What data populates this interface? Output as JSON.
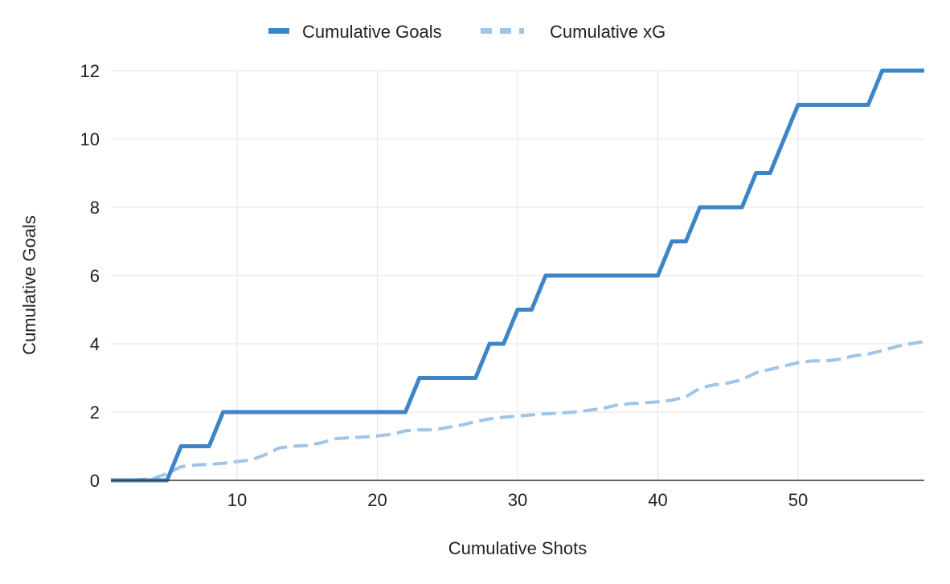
{
  "chart_data": {
    "type": "line",
    "title": "",
    "xlabel": "Cumulative Shots",
    "ylabel": "Cumulative Goals",
    "xlim": [
      1,
      59
    ],
    "ylim": [
      0,
      12
    ],
    "xticks": [
      10,
      20,
      30,
      40,
      50
    ],
    "yticks": [
      0,
      2,
      4,
      6,
      8,
      10,
      12
    ],
    "grid": true,
    "legend_position": "top-center",
    "series": [
      {
        "name": "Cumulative Goals",
        "color": "#3d85c6",
        "style": "solid",
        "x": [
          1,
          2,
          3,
          4,
          5,
          6,
          7,
          8,
          9,
          10,
          11,
          12,
          13,
          14,
          15,
          16,
          17,
          18,
          19,
          20,
          21,
          22,
          23,
          24,
          25,
          26,
          27,
          28,
          29,
          30,
          31,
          32,
          33,
          34,
          35,
          36,
          37,
          38,
          39,
          40,
          41,
          42,
          43,
          44,
          45,
          46,
          47,
          48,
          49,
          50,
          51,
          52,
          53,
          54,
          55,
          56,
          57,
          58,
          59
        ],
        "values": [
          0,
          0,
          0,
          0,
          0,
          1,
          1,
          1,
          2,
          2,
          2,
          2,
          2,
          2,
          2,
          2,
          2,
          2,
          2,
          2,
          2,
          2,
          3,
          3,
          3,
          3,
          3,
          4,
          4,
          5,
          5,
          6,
          6,
          6,
          6,
          6,
          6,
          6,
          6,
          6,
          7,
          7,
          8,
          8,
          8,
          8,
          9,
          9,
          10,
          11,
          11,
          11,
          11,
          11,
          11,
          12,
          12,
          12,
          12
        ]
      },
      {
        "name": "Cumulative xG",
        "color": "#9fc5e8",
        "style": "dashed",
        "x": [
          1,
          2,
          3,
          4,
          5,
          6,
          7,
          8,
          9,
          10,
          11,
          12,
          13,
          14,
          15,
          16,
          17,
          18,
          19,
          20,
          21,
          22,
          23,
          24,
          25,
          26,
          27,
          28,
          29,
          30,
          31,
          32,
          33,
          34,
          35,
          36,
          37,
          38,
          39,
          40,
          41,
          42,
          43,
          44,
          45,
          46,
          47,
          48,
          49,
          50,
          51,
          52,
          53,
          54,
          55,
          56,
          57,
          58,
          59
        ],
        "values": [
          0,
          0,
          0.02,
          0.05,
          0.2,
          0.4,
          0.45,
          0.47,
          0.5,
          0.55,
          0.6,
          0.75,
          0.95,
          1.0,
          1.02,
          1.1,
          1.22,
          1.25,
          1.27,
          1.3,
          1.35,
          1.45,
          1.48,
          1.48,
          1.55,
          1.62,
          1.72,
          1.8,
          1.85,
          1.88,
          1.92,
          1.95,
          1.97,
          2.0,
          2.05,
          2.1,
          2.2,
          2.25,
          2.27,
          2.3,
          2.35,
          2.45,
          2.7,
          2.8,
          2.85,
          2.95,
          3.15,
          3.25,
          3.35,
          3.45,
          3.5,
          3.5,
          3.55,
          3.65,
          3.7,
          3.8,
          3.92,
          4.0,
          4.07
        ]
      }
    ]
  }
}
